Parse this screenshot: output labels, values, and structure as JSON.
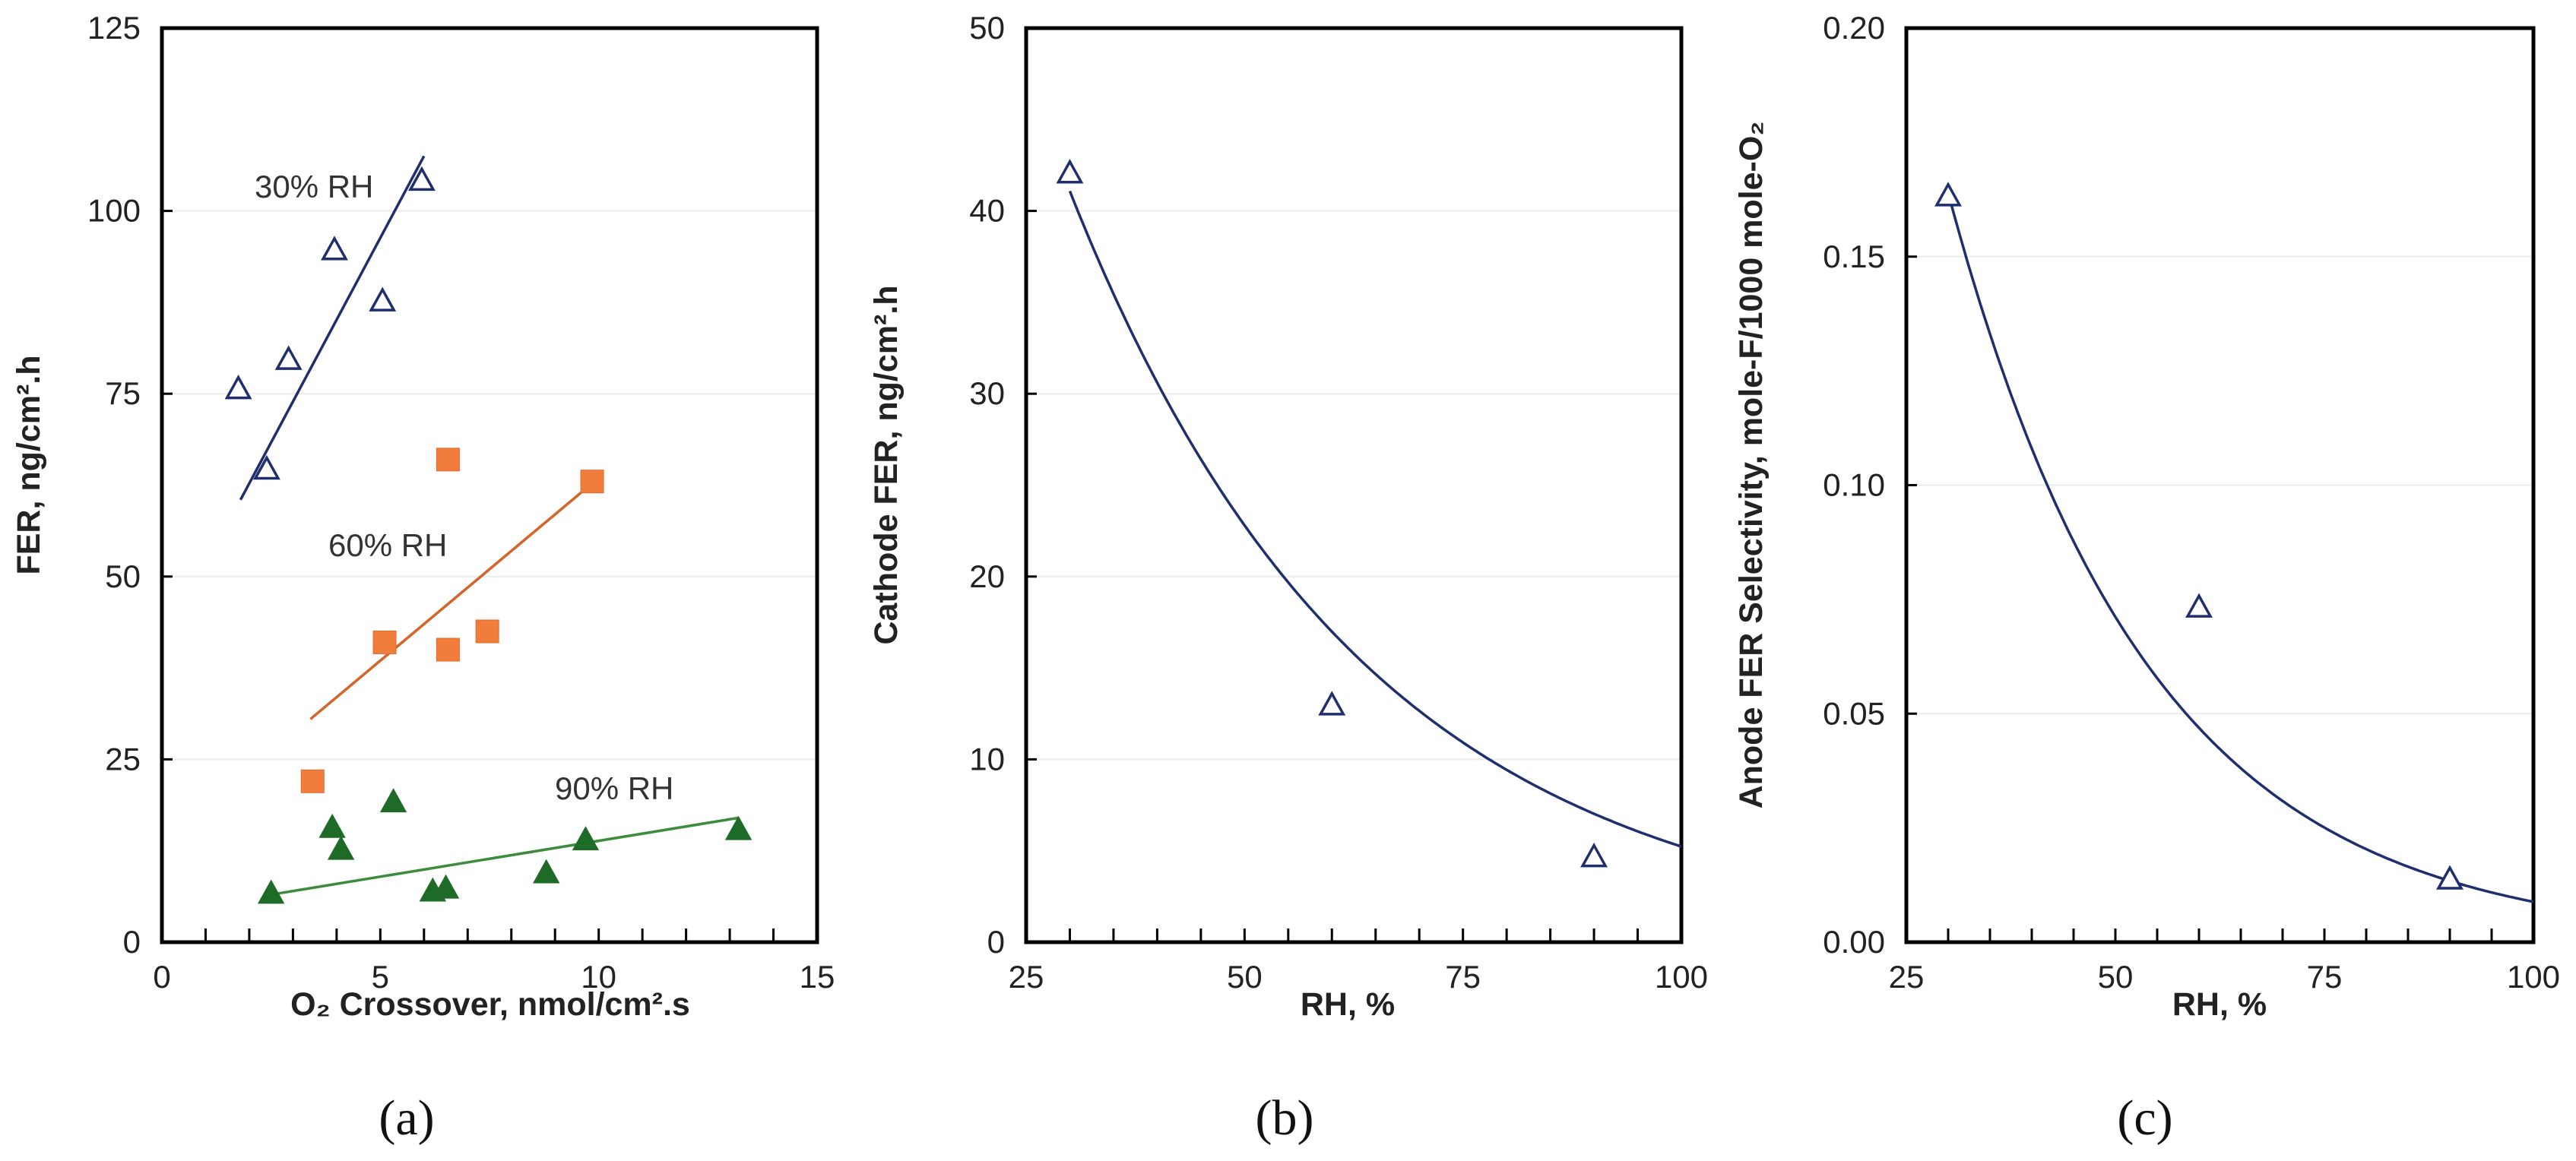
{
  "chart_data": [
    {
      "type": "scatter",
      "panel_label": "(a)",
      "xlabel": "O₂ Crossover, nmol/cm².s",
      "ylabel": "FER, ng/cm².h",
      "xlim": [
        0,
        15
      ],
      "ylim": [
        0,
        125
      ],
      "xticks": [
        "0",
        "5",
        "10",
        "15"
      ],
      "yticks": [
        "0",
        "25",
        "50",
        "75",
        "100",
        "125"
      ],
      "grid": "horizontal",
      "series": [
        {
          "name": "30% RH",
          "label_text": "30% RH",
          "marker": "open-triangle",
          "color": "#1F2F6E",
          "points": [
            [
              1.75,
              75.5
            ],
            [
              2.4,
              64.5
            ],
            [
              2.9,
              79.5
            ],
            [
              3.95,
              94.5
            ],
            [
              5.05,
              87.5
            ],
            [
              5.95,
              104
            ]
          ],
          "fit": [
            [
              1.8,
              60.5
            ],
            [
              6.0,
              107.5
            ]
          ]
        },
        {
          "name": "60% RH",
          "label_text": "60% RH",
          "marker": "filled-square",
          "color": "#F07D3C",
          "line_color": "#D4652A",
          "points": [
            [
              3.45,
              22
            ],
            [
              5.1,
              41
            ],
            [
              6.55,
              66
            ],
            [
              6.55,
              40
            ],
            [
              7.45,
              42.5
            ],
            [
              9.85,
              63
            ]
          ],
          "fit": [
            [
              3.4,
              30.5
            ],
            [
              9.9,
              63
            ]
          ]
        },
        {
          "name": "90% RH",
          "label_text": "90% RH",
          "marker": "filled-triangle",
          "color": "#1E6B27",
          "line_color": "#3C8C3C",
          "points": [
            [
              2.5,
              6.5
            ],
            [
              3.9,
              15.5
            ],
            [
              4.1,
              12.5
            ],
            [
              5.3,
              19
            ],
            [
              6.2,
              6.8
            ],
            [
              6.5,
              7.2
            ],
            [
              8.8,
              9.3
            ],
            [
              9.7,
              13.8
            ],
            [
              13.2,
              15.2
            ]
          ],
          "fit": [
            [
              2.5,
              6.5
            ],
            [
              13.2,
              17
            ]
          ]
        }
      ]
    },
    {
      "type": "scatter",
      "panel_label": "(b)",
      "xlabel": "RH, %",
      "ylabel": "Cathode FER, ng/cm².h",
      "xlim": [
        25,
        100
      ],
      "ylim": [
        0,
        50
      ],
      "xticks": [
        "25",
        "50",
        "75",
        "100"
      ],
      "yticks": [
        "0",
        "10",
        "20",
        "30",
        "40",
        "50"
      ],
      "grid": "horizontal",
      "series": [
        {
          "name": "Cathode FER",
          "marker": "open-triangle",
          "color": "#1F2F6E",
          "points": [
            [
              30,
              42
            ],
            [
              60,
              12.9
            ],
            [
              90,
              4.6
            ]
          ],
          "fit_curve": {
            "model": "exponential",
            "a": 99.37,
            "b": -0.02944,
            "x_from": 30,
            "x_to": 100
          }
        }
      ]
    },
    {
      "type": "scatter",
      "panel_label": "(c)",
      "xlabel": "RH, %",
      "ylabel": "Anode FER Selectivity, mole-F/1000 mole-O₂",
      "xlim": [
        25,
        100
      ],
      "ylim": [
        0,
        0.2
      ],
      "xticks": [
        "25",
        "50",
        "75",
        "100"
      ],
      "yticks": [
        "0.00",
        "0.05",
        "0.10",
        "0.15",
        "0.20"
      ],
      "grid": "horizontal",
      "series": [
        {
          "name": "Anode FER Selectivity",
          "marker": "open-triangle",
          "color": "#1F2F6E",
          "points": [
            [
              30,
              0.163
            ],
            [
              60,
              0.073
            ],
            [
              90,
              0.0135
            ]
          ],
          "fit_curve": {
            "model": "exponential",
            "a": 0.5734,
            "b": -0.04173,
            "x_from": 30,
            "x_to": 100
          }
        }
      ]
    }
  ]
}
